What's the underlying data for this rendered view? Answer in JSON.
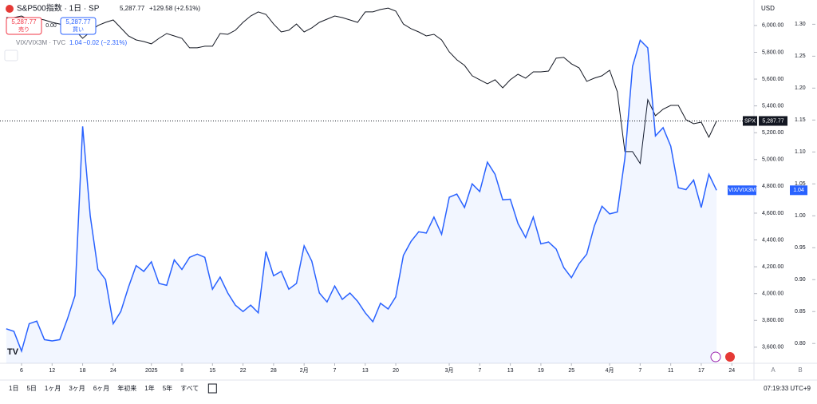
{
  "header": {
    "symbol": "S&P500指数 · 1日 · SP",
    "last": "5,287.77",
    "change": "+129.58 (+2.51%)",
    "sell_price": "5,287.77",
    "sell": "売り",
    "spread": "0.00",
    "buy_price": "5,287.77",
    "buy": "買い",
    "compare_symbol": "VIX/VIX3M · TVC",
    "compare_last": "1.04",
    "compare_change": "−0.02 (−2.31%)"
  },
  "axis": {
    "currency": "USD",
    "spx_tag_name": "SPX",
    "spx_tag_value": "5,287.77",
    "vix_tag_name": "VIX/VIX3M",
    "vix_tag_value": "1.04",
    "a": "A",
    "b": "B"
  },
  "toolbar": {
    "ranges": [
      "1日",
      "5日",
      "1ヶ月",
      "3ヶ月",
      "6ヶ月",
      "年初来",
      "1年",
      "5年",
      "すべて"
    ],
    "clock": "07:19:33 UTC+9"
  },
  "chart_data": {
    "type": "line",
    "x": [
      -2,
      -1,
      0,
      1,
      2,
      3,
      4,
      5,
      6,
      7,
      8,
      9,
      10,
      11,
      12,
      13,
      14,
      15,
      16,
      17,
      18,
      19,
      20,
      21,
      22,
      23,
      24,
      25,
      26,
      27,
      28,
      29,
      30,
      31,
      32,
      33,
      34,
      35,
      36,
      37,
      38,
      39,
      40,
      41,
      42,
      43,
      44,
      45,
      46,
      47,
      48,
      49,
      50,
      51,
      52,
      53,
      54,
      55,
      56,
      57,
      58,
      59,
      60,
      61,
      62,
      63,
      64,
      65,
      66,
      67,
      68,
      69,
      70,
      71,
      72,
      73,
      74,
      75,
      76,
      77,
      78,
      79,
      80,
      81,
      82,
      83,
      84,
      85,
      86,
      87,
      88,
      89,
      90,
      91
    ],
    "series": [
      {
        "name": "SPX",
        "color": "#131722",
        "values": [
          6059,
          6059,
          6071,
          6041,
          6053,
          6041,
          6023,
          6011,
          6000,
          5964,
          5904,
          5952,
          6000,
          6023,
          6041,
          5982,
          5922,
          5892,
          5880,
          5863,
          5904,
          5940,
          5922,
          5904,
          5833,
          5833,
          5845,
          5845,
          5940,
          5934,
          5964,
          6023,
          6071,
          6101,
          6083,
          6011,
          5952,
          5964,
          6011,
          5952,
          5982,
          6023,
          6047,
          6071,
          6059,
          6041,
          6023,
          6101,
          6101,
          6119,
          6130,
          6107,
          6011,
          5976,
          5952,
          5922,
          5934,
          5892,
          5803,
          5744,
          5702,
          5625,
          5595,
          5565,
          5595,
          5535,
          5595,
          5636,
          5607,
          5654,
          5654,
          5660,
          5756,
          5762,
          5714,
          5684,
          5583,
          5607,
          5625,
          5666,
          5506,
          5059,
          5059,
          4970,
          5446,
          5327,
          5375,
          5404,
          5404,
          5297,
          5267,
          5279,
          5166,
          5287.77
        ]
      },
      {
        "name": "VIX/VIX3M",
        "color": "#2962ff",
        "axis": "y2",
        "values": [
          0.823,
          0.819,
          0.788,
          0.831,
          0.835,
          0.806,
          0.804,
          0.806,
          0.838,
          0.875,
          1.14,
          1.0,
          0.916,
          0.9,
          0.831,
          0.85,
          0.888,
          0.922,
          0.913,
          0.928,
          0.894,
          0.891,
          0.931,
          0.916,
          0.935,
          0.94,
          0.935,
          0.885,
          0.904,
          0.879,
          0.86,
          0.85,
          0.86,
          0.848,
          0.944,
          0.906,
          0.913,
          0.885,
          0.894,
          0.953,
          0.929,
          0.879,
          0.865,
          0.89,
          0.869,
          0.879,
          0.866,
          0.848,
          0.834,
          0.863,
          0.854,
          0.873,
          0.938,
          0.96,
          0.975,
          0.973,
          0.998,
          0.971,
          1.029,
          1.034,
          1.013,
          1.05,
          1.038,
          1.084,
          1.065,
          1.025,
          1.026,
          0.988,
          0.966,
          0.998,
          0.956,
          0.959,
          0.948,
          0.919,
          0.903,
          0.925,
          0.94,
          0.984,
          1.015,
          1.003,
          1.006,
          1.09,
          1.234,
          1.275,
          1.263,
          1.125,
          1.138,
          1.109,
          1.044,
          1.041,
          1.056,
          1.013,
          1.065,
          1.04
        ]
      }
    ],
    "xlim": [
      -2.82,
      95.9
    ],
    "xticks": [
      {
        "value": 0,
        "label": "6"
      },
      {
        "value": 4,
        "label": "12"
      },
      {
        "value": 8,
        "label": "18"
      },
      {
        "value": 12,
        "label": "24"
      },
      {
        "value": 17,
        "label": "2025"
      },
      {
        "value": 21,
        "label": "8"
      },
      {
        "value": 25,
        "label": "15"
      },
      {
        "value": 29,
        "label": "22"
      },
      {
        "value": 33,
        "label": "28"
      },
      {
        "value": 37,
        "label": "2月"
      },
      {
        "value": 41,
        "label": "7"
      },
      {
        "value": 45,
        "label": "13"
      },
      {
        "value": 49,
        "label": "20"
      },
      {
        "value": 56,
        "label": "3月"
      },
      {
        "value": 60,
        "label": "7"
      },
      {
        "value": 64,
        "label": "13"
      },
      {
        "value": 68,
        "label": "19"
      },
      {
        "value": 72,
        "label": "25"
      },
      {
        "value": 77,
        "label": "4月"
      },
      {
        "value": 81,
        "label": "7"
      },
      {
        "value": 85,
        "label": "11"
      },
      {
        "value": 89,
        "label": "17"
      },
      {
        "value": 93,
        "label": "24"
      }
    ],
    "ylim": [
      3480,
      6190
    ],
    "yticks": [
      {
        "value": 3600,
        "label": "3,600.00"
      },
      {
        "value": 3800,
        "label": "3,800.00"
      },
      {
        "value": 4000,
        "label": "4,000.00"
      },
      {
        "value": 4200,
        "label": "4,200.00"
      },
      {
        "value": 4400,
        "label": "4,400.00"
      },
      {
        "value": 4600,
        "label": "4,600.00"
      },
      {
        "value": 4800,
        "label": "4,800.00"
      },
      {
        "value": 5000,
        "label": "5,000.00"
      },
      {
        "value": 5200,
        "label": "5,200.00"
      },
      {
        "value": 5400,
        "label": "5,400.00"
      },
      {
        "value": 5600,
        "label": "5,600.00"
      },
      {
        "value": 5800,
        "label": "5,800.00"
      },
      {
        "value": 6000,
        "label": "6,000.00"
      }
    ],
    "y2lim": [
      0.769,
      1.338
    ],
    "y2ticks": [
      {
        "value": 0.8,
        "label": "0.80"
      },
      0.85,
      {
        "value": 0.9,
        "label": "0.90"
      },
      0.95,
      {
        "value": 1.0,
        "label": "1.00"
      },
      1.05,
      {
        "value": 1.1,
        "label": "1.10"
      },
      1.15,
      {
        "value": 1.2,
        "label": "1.20"
      },
      1.25,
      {
        "value": 1.3,
        "label": "1.30"
      }
    ],
    "grid": false,
    "area_fill": "rgba(41,98,255,0.06)"
  }
}
